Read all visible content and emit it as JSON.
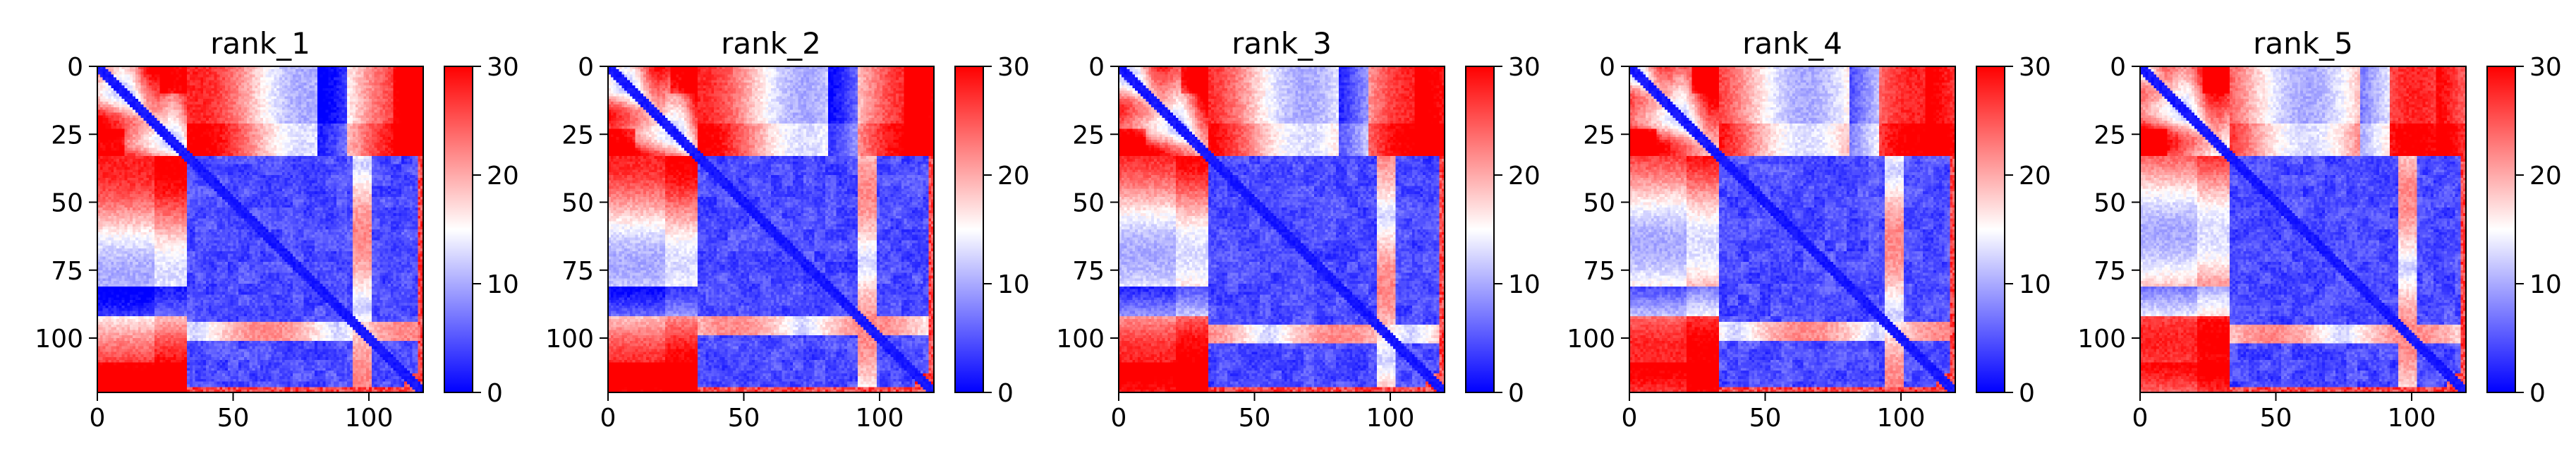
{
  "chart_data": [
    {
      "type": "heatmap",
      "title": "rank_1",
      "x_ticks": [
        0,
        50,
        100
      ],
      "y_ticks": [
        0,
        25,
        50,
        75,
        100
      ],
      "xlim": [
        0,
        120
      ],
      "ylim": [
        120,
        0
      ],
      "n": 120,
      "colorbar": {
        "ticks": [
          0,
          10,
          20,
          30
        ],
        "range": [
          0,
          30
        ],
        "colormap": "bwr"
      },
      "structure": {
        "upper_block_end": 33,
        "diag_width": 2.5,
        "row_band": [
          94,
          100
        ],
        "col_band": [
          24,
          30
        ]
      }
    },
    {
      "type": "heatmap",
      "title": "rank_2",
      "x_ticks": [
        0,
        50,
        100
      ],
      "y_ticks": [
        0,
        25,
        50,
        75,
        100
      ],
      "xlim": [
        0,
        120
      ],
      "ylim": [
        120,
        0
      ],
      "n": 120,
      "colorbar": {
        "ticks": [
          0,
          10,
          20,
          30
        ],
        "range": [
          0,
          30
        ],
        "colormap": "bwr"
      },
      "structure": {
        "upper_block_end": 33,
        "diag_width": 2.5,
        "row_band": [
          92,
          98
        ],
        "col_band": [
          24,
          30
        ]
      }
    },
    {
      "type": "heatmap",
      "title": "rank_3",
      "x_ticks": [
        0,
        50,
        100
      ],
      "y_ticks": [
        0,
        25,
        50,
        75,
        100
      ],
      "xlim": [
        0,
        120
      ],
      "ylim": [
        120,
        0
      ],
      "n": 120,
      "colorbar": {
        "ticks": [
          0,
          10,
          20,
          30
        ],
        "range": [
          0,
          30
        ],
        "colormap": "bwr"
      },
      "structure": {
        "upper_block_end": 33,
        "diag_width": 2.5,
        "row_band": [
          95,
          101
        ],
        "col_band": [
          24,
          30
        ]
      }
    },
    {
      "type": "heatmap",
      "title": "rank_4",
      "x_ticks": [
        0,
        50,
        100
      ],
      "y_ticks": [
        0,
        25,
        50,
        75,
        100
      ],
      "xlim": [
        0,
        120
      ],
      "ylim": [
        120,
        0
      ],
      "n": 120,
      "colorbar": {
        "ticks": [
          0,
          10,
          20,
          30
        ],
        "range": [
          0,
          30
        ],
        "colormap": "bwr"
      },
      "structure": {
        "upper_block_end": 33,
        "diag_width": 2.5,
        "row_band": [
          94,
          100
        ],
        "col_band": [
          24,
          30
        ]
      }
    },
    {
      "type": "heatmap",
      "title": "rank_5",
      "x_ticks": [
        0,
        50,
        100
      ],
      "y_ticks": [
        0,
        25,
        50,
        75,
        100
      ],
      "xlim": [
        0,
        120
      ],
      "ylim": [
        120,
        0
      ],
      "n": 120,
      "colorbar": {
        "ticks": [
          0,
          10,
          20,
          30
        ],
        "range": [
          0,
          30
        ],
        "colormap": "bwr"
      },
      "structure": {
        "upper_block_end": 33,
        "diag_width": 2.5,
        "row_band": [
          95,
          101
        ],
        "col_band": [
          24,
          30
        ]
      }
    }
  ]
}
